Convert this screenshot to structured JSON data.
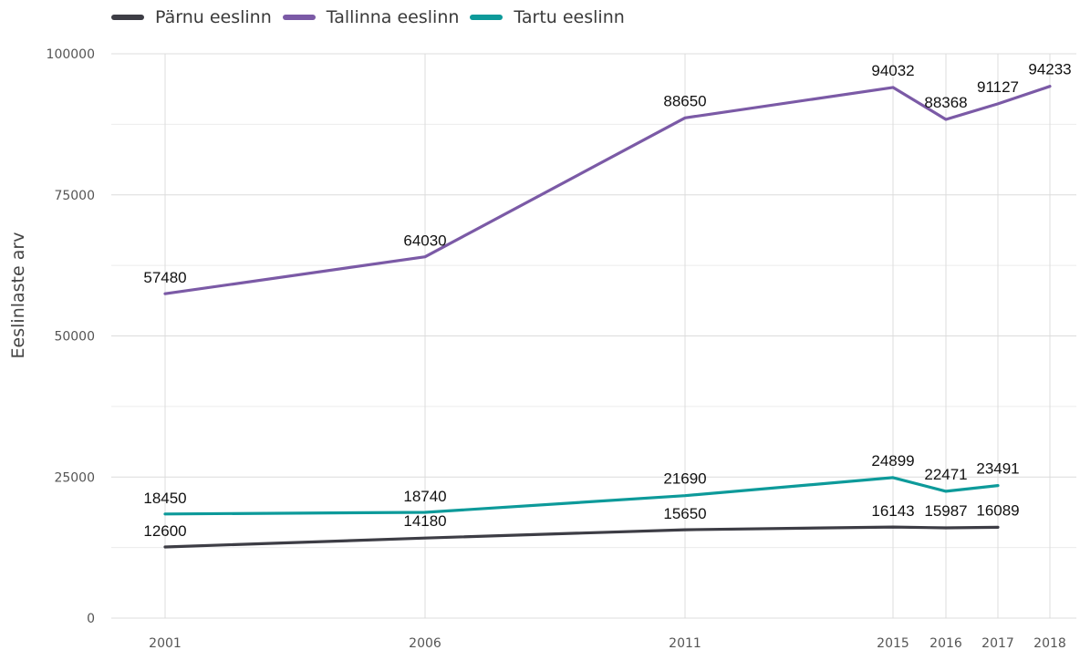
{
  "chart_data": {
    "type": "line",
    "x": [
      2001,
      2006,
      2011,
      2015,
      2016,
      2017,
      2018
    ],
    "x_tick_labels": [
      "2001",
      "2006",
      "2011",
      "2015",
      "2016",
      "2017",
      "2018"
    ],
    "ylabel": "Eeslinlaste arv",
    "ylim": [
      0,
      100000
    ],
    "y_ticks": [
      0,
      25000,
      50000,
      75000,
      100000
    ],
    "y_tick_labels": [
      "0",
      "25000",
      "50000",
      "75000",
      "100000"
    ],
    "grid": true,
    "legend_position": "top-left",
    "series": [
      {
        "name": "Pärnu eeslinn",
        "color": "#3d3d45",
        "x": [
          2001,
          2006,
          2011,
          2015,
          2016,
          2017
        ],
        "values": [
          12600,
          14180,
          15650,
          16143,
          15987,
          16089
        ],
        "labels": [
          "12600",
          "14180",
          "15650",
          "16143",
          "15987",
          "16089"
        ]
      },
      {
        "name": "Tallinna eeslinn",
        "color": "#7b5aa6",
        "x": [
          2001,
          2006,
          2011,
          2015,
          2016,
          2017,
          2018
        ],
        "values": [
          57480,
          64030,
          88650,
          94032,
          88368,
          91127,
          94233
        ],
        "labels": [
          "57480",
          "64030",
          "88650",
          "94032",
          "88368",
          "91127",
          "94233"
        ]
      },
      {
        "name": "Tartu eeslinn",
        "color": "#0d9a9a",
        "x": [
          2001,
          2006,
          2011,
          2015,
          2016,
          2017
        ],
        "values": [
          18450,
          18740,
          21690,
          24899,
          22471,
          23491
        ],
        "labels": [
          "18450",
          "18740",
          "21690",
          "24899",
          "22471",
          "23491"
        ]
      }
    ]
  }
}
